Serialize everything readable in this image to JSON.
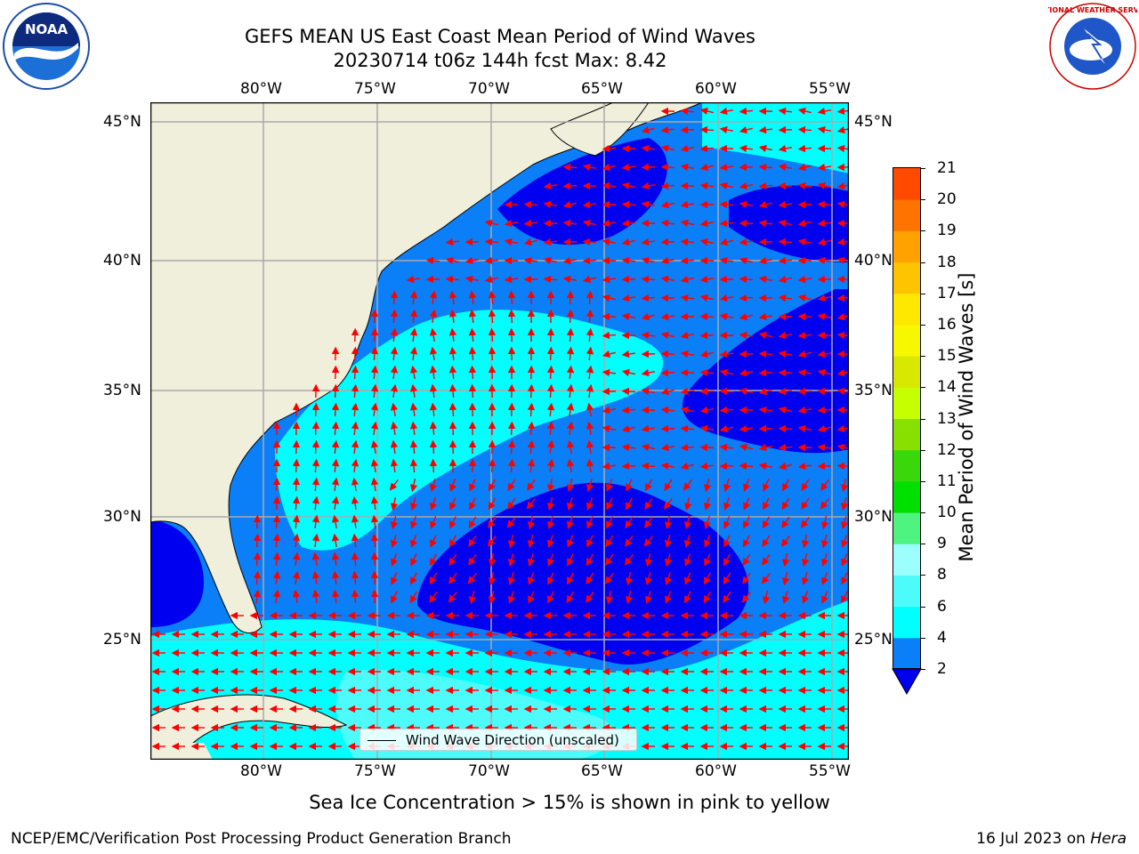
{
  "header": {
    "title_line1": "GEFS MEAN US East Coast Mean Period of Wind Waves",
    "title_line2": "20230714 t06z 144h fcst   Max: 8.42"
  },
  "logos": {
    "left_icon": "noaa-logo",
    "left_text": "NOAA",
    "right_icon": "nws-logo",
    "right_text": "NATIONAL WEATHER SERVICE"
  },
  "map": {
    "lon_labels": [
      "80°W",
      "75°W",
      "70°W",
      "65°W",
      "60°W",
      "55°W"
    ],
    "lat_labels": [
      "45°N",
      "40°N",
      "35°N",
      "30°N",
      "25°N"
    ],
    "legend_label": "Wind Wave Direction (unscaled)",
    "colors": {
      "land": "#efefdc",
      "period_2_4": "#0a7ff7",
      "period_4_6": "#00ffff",
      "period_6_8": "#4dfbfb",
      "period_under_2": "#0000f0",
      "arrow": "#ff0000",
      "grid": "#aaaaaa"
    }
  },
  "colorbar": {
    "label": "Mean Period of Wind Waves [s]",
    "ticks": [
      "2",
      "4",
      "6",
      "8",
      "9",
      "10",
      "11",
      "12",
      "13",
      "14",
      "15",
      "16",
      "17",
      "18",
      "19",
      "20",
      "21"
    ],
    "colors": [
      "#0a7ff7",
      "#00ffff",
      "#4dfbfb",
      "#9cfffd",
      "#4ef47f",
      "#00e000",
      "#3ad80a",
      "#88e000",
      "#c6ff00",
      "#d9e800",
      "#f7f700",
      "#ffe800",
      "#ffc400",
      "#ffa200",
      "#ff7300",
      "#ff4a00",
      "#ff1a00",
      "#ff0000"
    ],
    "under_color": "#0000f0"
  },
  "footer": {
    "sea_ice_note": "Sea Ice Concentration > 15% is shown in pink to yellow",
    "org": "NCEP/EMC/Verification Post Processing Product Generation Branch",
    "date_prefix": "16 Jul 2023 on ",
    "machine": "Hera"
  }
}
